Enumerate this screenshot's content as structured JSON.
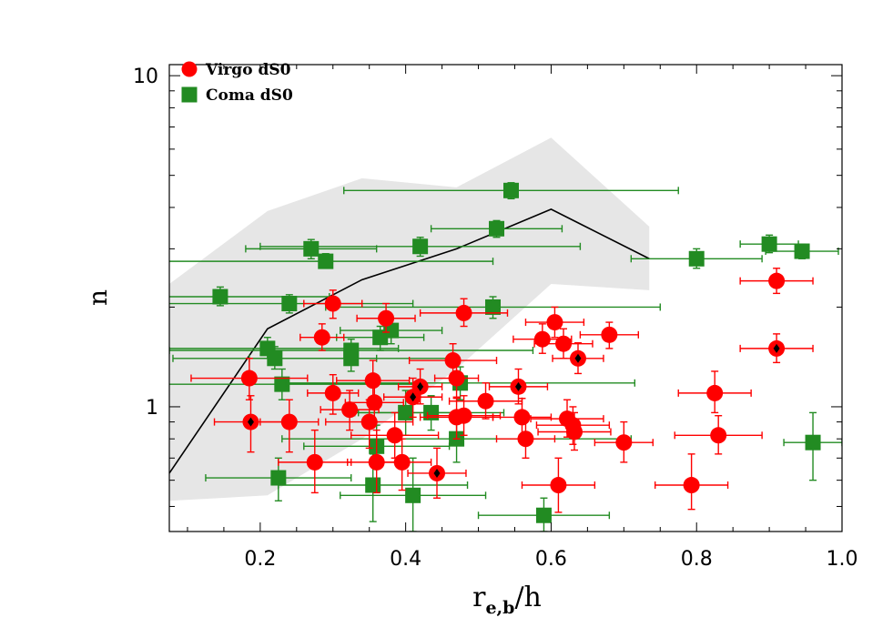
{
  "chart_data": {
    "type": "scatter",
    "title": "",
    "xlabel_main": "r",
    "xlabel_sub": "e,b",
    "xlabel_tail": "/h",
    "ylabel": "n",
    "xlim": [
      0.075,
      1.0
    ],
    "ylim": [
      0.42,
      10.8
    ],
    "y_scale": "log",
    "x_ticks": [
      0.2,
      0.4,
      0.6,
      0.8,
      1.0
    ],
    "x_tick_labels": [
      "0.2",
      "0.4",
      "0.6",
      "0.8",
      "1.0"
    ],
    "y_ticks": [
      1,
      10
    ],
    "y_tick_labels": [
      "1",
      "10"
    ],
    "legend_position": "top-left",
    "band": {
      "color": "#e6e6e6",
      "upper": [
        [
          0.075,
          2.35
        ],
        [
          0.21,
          3.9
        ],
        [
          0.34,
          4.9
        ],
        [
          0.47,
          4.6
        ],
        [
          0.6,
          6.5
        ],
        [
          0.735,
          3.5
        ]
      ],
      "lower": [
        [
          0.075,
          0.52
        ],
        [
          0.21,
          0.54
        ],
        [
          0.34,
          0.8
        ],
        [
          0.47,
          1.3
        ],
        [
          0.6,
          2.35
        ],
        [
          0.735,
          2.25
        ]
      ]
    },
    "median_line": {
      "color": "#000000",
      "points": [
        [
          0.075,
          0.63
        ],
        [
          0.21,
          1.72
        ],
        [
          0.34,
          2.42
        ],
        [
          0.47,
          3.0
        ],
        [
          0.6,
          3.95
        ],
        [
          0.735,
          2.8
        ]
      ]
    },
    "series": [
      {
        "name": "Virgo dS0",
        "marker": "circle",
        "color": "#ff0000",
        "points": [
          {
            "x": 0.185,
            "y": 1.22,
            "xerr": 0.08,
            "ylo": 1.05,
            "yhi": 1.4
          },
          {
            "x": 0.187,
            "y": 0.9,
            "xerr": 0.05,
            "ylo": 0.73,
            "yhi": 1.08,
            "mark": true
          },
          {
            "x": 0.24,
            "y": 0.9,
            "xerr": 0.04,
            "ylo": 0.73,
            "yhi": 1.05
          },
          {
            "x": 0.275,
            "y": 0.68,
            "xerr": 0.05,
            "ylo": 0.55,
            "yhi": 0.85
          },
          {
            "x": 0.285,
            "y": 1.62,
            "xerr": 0.03,
            "ylo": 1.48,
            "yhi": 1.78
          },
          {
            "x": 0.3,
            "y": 2.05,
            "xerr": 0.04,
            "ylo": 1.85,
            "yhi": 2.25
          },
          {
            "x": 0.3,
            "y": 1.1,
            "xerr": 0.035,
            "ylo": 0.95,
            "yhi": 1.25
          },
          {
            "x": 0.323,
            "y": 0.98,
            "xerr": 0.04,
            "ylo": 0.85,
            "yhi": 1.12
          },
          {
            "x": 0.355,
            "y": 1.2,
            "xerr": 0.05,
            "ylo": 1.05,
            "yhi": 1.38
          },
          {
            "x": 0.357,
            "y": 1.03,
            "xerr": 0.04,
            "ylo": 0.9,
            "yhi": 1.18
          },
          {
            "x": 0.35,
            "y": 0.9,
            "xerr": 0.06,
            "ylo": 0.75,
            "yhi": 1.05
          },
          {
            "x": 0.36,
            "y": 0.68,
            "xerr": 0.04,
            "ylo": 0.55,
            "yhi": 0.85
          },
          {
            "x": 0.373,
            "y": 1.85,
            "xerr": 0.04,
            "ylo": 1.68,
            "yhi": 2.05
          },
          {
            "x": 0.385,
            "y": 0.82,
            "xerr": 0.06,
            "ylo": 0.7,
            "yhi": 0.96
          },
          {
            "x": 0.395,
            "y": 0.68,
            "xerr": 0.04,
            "ylo": 0.56,
            "yhi": 0.8
          },
          {
            "x": 0.41,
            "y": 1.07,
            "xerr": 0.04,
            "ylo": 0.93,
            "yhi": 1.22,
            "mark": true
          },
          {
            "x": 0.42,
            "y": 1.15,
            "xerr": 0.03,
            "ylo": 1.02,
            "yhi": 1.3,
            "mark": true
          },
          {
            "x": 0.443,
            "y": 0.63,
            "xerr": 0.04,
            "ylo": 0.53,
            "yhi": 0.75,
            "mark": true
          },
          {
            "x": 0.465,
            "y": 1.38,
            "xerr": 0.06,
            "ylo": 1.22,
            "yhi": 1.55
          },
          {
            "x": 0.47,
            "y": 1.22,
            "xerr": 0.03,
            "ylo": 1.07,
            "yhi": 1.38
          },
          {
            "x": 0.47,
            "y": 0.93,
            "xerr": 0.05,
            "ylo": 0.8,
            "yhi": 1.06
          },
          {
            "x": 0.48,
            "y": 0.94,
            "xerr": 0.05,
            "ylo": 0.82,
            "yhi": 1.08
          },
          {
            "x": 0.48,
            "y": 1.92,
            "xerr": 0.06,
            "ylo": 1.75,
            "yhi": 2.12
          },
          {
            "x": 0.51,
            "y": 1.04,
            "xerr": 0.05,
            "ylo": 0.92,
            "yhi": 1.18
          },
          {
            "x": 0.555,
            "y": 1.15,
            "xerr": 0.04,
            "ylo": 1.02,
            "yhi": 1.3,
            "mark": true
          },
          {
            "x": 0.56,
            "y": 0.93,
            "xerr": 0.04,
            "ylo": 0.82,
            "yhi": 1.06
          },
          {
            "x": 0.565,
            "y": 0.8,
            "xerr": 0.04,
            "ylo": 0.7,
            "yhi": 0.92
          },
          {
            "x": 0.588,
            "y": 1.6,
            "xerr": 0.04,
            "ylo": 1.45,
            "yhi": 1.78
          },
          {
            "x": 0.605,
            "y": 1.8,
            "xerr": 0.04,
            "ylo": 1.62,
            "yhi": 2.0
          },
          {
            "x": 0.61,
            "y": 0.58,
            "xerr": 0.05,
            "ylo": 0.48,
            "yhi": 0.7
          },
          {
            "x": 0.617,
            "y": 1.55,
            "xerr": 0.04,
            "ylo": 1.4,
            "yhi": 1.72
          },
          {
            "x": 0.622,
            "y": 0.92,
            "xerr": 0.05,
            "ylo": 0.81,
            "yhi": 1.05
          },
          {
            "x": 0.63,
            "y": 0.88,
            "xerr": 0.05,
            "ylo": 0.77,
            "yhi": 1.0
          },
          {
            "x": 0.632,
            "y": 0.84,
            "xerr": 0.05,
            "ylo": 0.74,
            "yhi": 0.96
          },
          {
            "x": 0.637,
            "y": 1.4,
            "xerr": 0.035,
            "ylo": 1.26,
            "yhi": 1.56,
            "mark": true
          },
          {
            "x": 0.68,
            "y": 1.65,
            "xerr": 0.04,
            "ylo": 1.5,
            "yhi": 1.8
          },
          {
            "x": 0.7,
            "y": 0.78,
            "xerr": 0.04,
            "ylo": 0.68,
            "yhi": 0.9
          },
          {
            "x": 0.793,
            "y": 0.58,
            "xerr": 0.05,
            "ylo": 0.49,
            "yhi": 0.72
          },
          {
            "x": 0.825,
            "y": 1.1,
            "xerr": 0.05,
            "ylo": 0.96,
            "yhi": 1.28
          },
          {
            "x": 0.83,
            "y": 0.82,
            "xerr": 0.06,
            "ylo": 0.72,
            "yhi": 0.94
          },
          {
            "x": 0.91,
            "y": 2.4,
            "xerr": 0.05,
            "ylo": 2.2,
            "yhi": 2.62
          },
          {
            "x": 0.91,
            "y": 1.5,
            "xerr": 0.05,
            "ylo": 1.36,
            "yhi": 1.66,
            "mark": true
          }
        ]
      },
      {
        "name": "Coma dS0",
        "marker": "square",
        "color": "#228b22",
        "points": [
          {
            "x": 0.145,
            "y": 2.15,
            "xerr": 0.15,
            "ylo": 2.02,
            "yhi": 2.3
          },
          {
            "x": 0.21,
            "y": 1.5,
            "xerr": 0.18,
            "ylo": 1.4,
            "yhi": 1.62
          },
          {
            "x": 0.22,
            "y": 1.4,
            "xerr": 0.14,
            "ylo": 1.3,
            "yhi": 1.52
          },
          {
            "x": 0.23,
            "y": 1.17,
            "xerr": 0.18,
            "ylo": 1.05,
            "yhi": 1.3
          },
          {
            "x": 0.225,
            "y": 0.61,
            "xerr": 0.1,
            "ylo": 0.52,
            "yhi": 0.7
          },
          {
            "x": 0.24,
            "y": 2.05,
            "xerr": 0.17,
            "ylo": 1.92,
            "yhi": 2.18
          },
          {
            "x": 0.27,
            "y": 3.0,
            "xerr": 0.09,
            "ylo": 2.8,
            "yhi": 3.2
          },
          {
            "x": 0.29,
            "y": 2.75,
            "xerr": 0.23,
            "ylo": 2.62,
            "yhi": 2.9
          },
          {
            "x": 0.325,
            "y": 1.48,
            "xerr": 0.25,
            "ylo": 1.35,
            "yhi": 1.6
          },
          {
            "x": 0.325,
            "y": 1.4,
            "xerr": 0.14,
            "ylo": 1.28,
            "yhi": 1.53
          },
          {
            "x": 0.355,
            "y": 0.58,
            "xerr": 0.13,
            "ylo": 0.45,
            "yhi": 0.72
          },
          {
            "x": 0.36,
            "y": 0.76,
            "xerr": 0.1,
            "ylo": 0.65,
            "yhi": 0.88
          },
          {
            "x": 0.365,
            "y": 1.62,
            "xerr": 0.06,
            "ylo": 1.48,
            "yhi": 1.75
          },
          {
            "x": 0.38,
            "y": 1.7,
            "xerr": 0.07,
            "ylo": 1.55,
            "yhi": 1.85
          },
          {
            "x": 0.4,
            "y": 0.96,
            "xerr": 0.07,
            "ylo": 0.82,
            "yhi": 1.12
          },
          {
            "x": 0.41,
            "y": 0.54,
            "xerr": 0.1,
            "ylo": 0.42,
            "yhi": 0.7
          },
          {
            "x": 0.42,
            "y": 3.05,
            "xerr": 0.22,
            "ylo": 2.85,
            "yhi": 3.25
          },
          {
            "x": 0.435,
            "y": 0.96,
            "xerr": 0.1,
            "ylo": 0.85,
            "yhi": 1.08
          },
          {
            "x": 0.47,
            "y": 0.8,
            "xerr": 0.24,
            "ylo": 0.68,
            "yhi": 0.93
          },
          {
            "x": 0.475,
            "y": 1.18,
            "xerr": 0.24,
            "ylo": 1.05,
            "yhi": 1.32
          },
          {
            "x": 0.52,
            "y": 2.0,
            "xerr": 0.23,
            "ylo": 1.85,
            "yhi": 2.15
          },
          {
            "x": 0.525,
            "y": 3.45,
            "xerr": 0.09,
            "ylo": 3.25,
            "yhi": 3.65
          },
          {
            "x": 0.545,
            "y": 4.5,
            "xerr": 0.23,
            "ylo": 4.25,
            "yhi": 4.75
          },
          {
            "x": 0.59,
            "y": 0.47,
            "xerr": 0.09,
            "ylo": 0.42,
            "yhi": 0.53
          },
          {
            "x": 0.8,
            "y": 2.8,
            "xerr": 0.09,
            "ylo": 2.62,
            "yhi": 3.0
          },
          {
            "x": 0.9,
            "y": 3.1,
            "xerr": 0.04,
            "ylo": 2.92,
            "yhi": 3.3
          },
          {
            "x": 0.945,
            "y": 2.95,
            "xerr": 0.05,
            "ylo": 2.8,
            "yhi": 3.1
          },
          {
            "x": 0.96,
            "y": 0.78,
            "xerr": 0.04,
            "ylo": 0.6,
            "yhi": 0.96
          }
        ]
      }
    ]
  }
}
